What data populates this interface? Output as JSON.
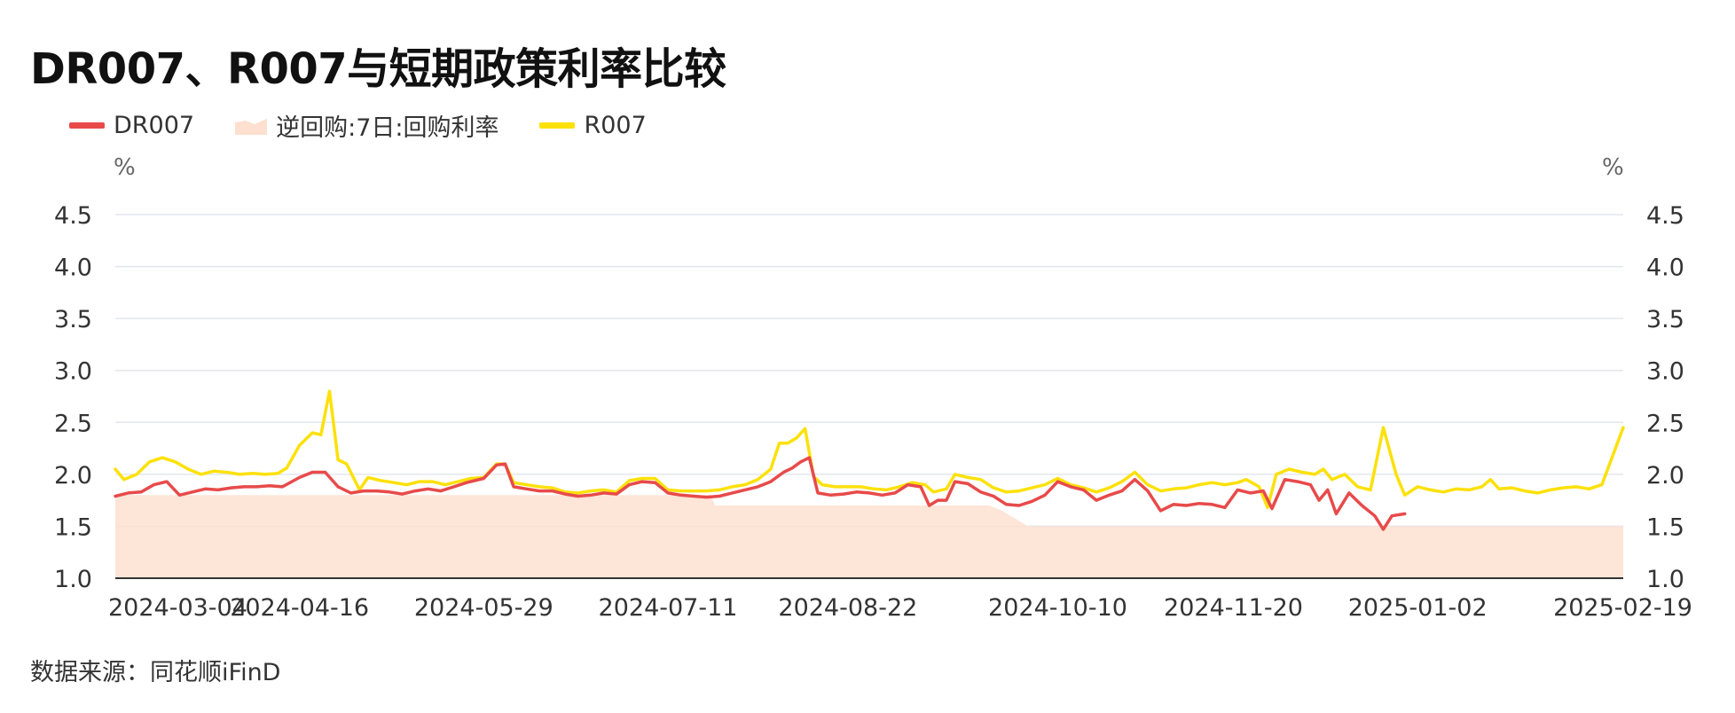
{
  "title": "DR007、R007与短期政策利率比较",
  "legend": [
    {
      "label": "DR007",
      "color": "#e84a4a",
      "kind": "line"
    },
    {
      "label": "逆回购:7日:回购利率",
      "color": "#fde0d0",
      "kind": "area"
    },
    {
      "label": "R007",
      "color": "#fce10b",
      "kind": "line"
    }
  ],
  "unit_left": "%",
  "unit_right": "%",
  "source": "数据来源：同花顺iFinD",
  "chart_data": {
    "type": "line",
    "title": "DR007、R007与短期政策利率比较",
    "ylabel": "%",
    "ylim": [
      1.0,
      4.5
    ],
    "yticks": [
      "1.0",
      "1.5",
      "2.0",
      "2.5",
      "3.0",
      "3.5",
      "4.0",
      "4.5"
    ],
    "xticks": [
      "2024-03-04",
      "2024-04-16",
      "2024-05-29",
      "2024-07-11",
      "2024-08-22",
      "2024-10-10",
      "2024-11-20",
      "2025-01-02",
      "2025-02-19"
    ],
    "x_range": [
      "2024-03-04",
      "2025-02-19"
    ],
    "grid": true,
    "legend_position": "top-left",
    "series": [
      {
        "name": "逆回购:7日:回购利率",
        "kind": "area",
        "color": "#fde0d0",
        "points": [
          [
            "2024-03-04",
            1.8
          ],
          [
            "2024-07-21",
            1.8
          ],
          [
            "2024-07-22",
            1.7
          ],
          [
            "2024-09-24",
            1.7
          ],
          [
            "2024-09-27",
            1.65
          ],
          [
            "2024-10-03",
            1.5
          ],
          [
            "2025-02-19",
            1.5
          ]
        ]
      },
      {
        "name": "R007",
        "kind": "line",
        "color": "#fce10b",
        "points": [
          [
            "2024-03-04",
            2.05
          ],
          [
            "2024-03-06",
            1.95
          ],
          [
            "2024-03-09",
            2.0
          ],
          [
            "2024-03-12",
            2.12
          ],
          [
            "2024-03-15",
            2.16
          ],
          [
            "2024-03-18",
            2.12
          ],
          [
            "2024-03-21",
            2.05
          ],
          [
            "2024-03-24",
            2.0
          ],
          [
            "2024-03-27",
            2.03
          ],
          [
            "2024-03-30",
            2.02
          ],
          [
            "2024-04-02",
            2.0
          ],
          [
            "2024-04-05",
            2.01
          ],
          [
            "2024-04-08",
            2.0
          ],
          [
            "2024-04-11",
            2.01
          ],
          [
            "2024-04-13",
            2.06
          ],
          [
            "2024-04-16",
            2.28
          ],
          [
            "2024-04-19",
            2.4
          ],
          [
            "2024-04-21",
            2.38
          ],
          [
            "2024-04-23",
            2.8
          ],
          [
            "2024-04-25",
            2.14
          ],
          [
            "2024-04-27",
            2.1
          ],
          [
            "2024-04-30",
            1.85
          ],
          [
            "2024-05-02",
            1.97
          ],
          [
            "2024-05-05",
            1.94
          ],
          [
            "2024-05-08",
            1.92
          ],
          [
            "2024-05-11",
            1.9
          ],
          [
            "2024-05-14",
            1.93
          ],
          [
            "2024-05-17",
            1.93
          ],
          [
            "2024-05-20",
            1.9
          ],
          [
            "2024-05-23",
            1.93
          ],
          [
            "2024-05-26",
            1.96
          ],
          [
            "2024-05-29",
            1.97
          ],
          [
            "2024-06-01",
            2.1
          ],
          [
            "2024-06-03",
            2.1
          ],
          [
            "2024-06-05",
            1.92
          ],
          [
            "2024-06-08",
            1.9
          ],
          [
            "2024-06-11",
            1.88
          ],
          [
            "2024-06-14",
            1.87
          ],
          [
            "2024-06-17",
            1.83
          ],
          [
            "2024-06-20",
            1.82
          ],
          [
            "2024-06-23",
            1.84
          ],
          [
            "2024-06-26",
            1.85
          ],
          [
            "2024-06-29",
            1.83
          ],
          [
            "2024-07-02",
            1.94
          ],
          [
            "2024-07-05",
            1.96
          ],
          [
            "2024-07-08",
            1.96
          ],
          [
            "2024-07-11",
            1.85
          ],
          [
            "2024-07-14",
            1.84
          ],
          [
            "2024-07-17",
            1.84
          ],
          [
            "2024-07-20",
            1.84
          ],
          [
            "2024-07-23",
            1.85
          ],
          [
            "2024-07-26",
            1.88
          ],
          [
            "2024-07-29",
            1.9
          ],
          [
            "2024-08-01",
            1.95
          ],
          [
            "2024-08-04",
            2.05
          ],
          [
            "2024-08-06",
            2.3
          ],
          [
            "2024-08-08",
            2.3
          ],
          [
            "2024-08-10",
            2.35
          ],
          [
            "2024-08-12",
            2.44
          ],
          [
            "2024-08-14",
            1.98
          ],
          [
            "2024-08-16",
            1.9
          ],
          [
            "2024-08-19",
            1.88
          ],
          [
            "2024-08-22",
            1.88
          ],
          [
            "2024-08-25",
            1.88
          ],
          [
            "2024-08-28",
            1.86
          ],
          [
            "2024-08-31",
            1.85
          ],
          [
            "2024-09-03",
            1.88
          ],
          [
            "2024-09-06",
            1.92
          ],
          [
            "2024-09-09",
            1.9
          ],
          [
            "2024-09-11",
            1.83
          ],
          [
            "2024-09-14",
            1.86
          ],
          [
            "2024-09-16",
            2.0
          ],
          [
            "2024-09-19",
            1.97
          ],
          [
            "2024-09-22",
            1.95
          ],
          [
            "2024-09-25",
            1.87
          ],
          [
            "2024-09-28",
            1.83
          ],
          [
            "2024-10-01",
            1.84
          ],
          [
            "2024-10-04",
            1.87
          ],
          [
            "2024-10-07",
            1.9
          ],
          [
            "2024-10-10",
            1.96
          ],
          [
            "2024-10-13",
            1.9
          ],
          [
            "2024-10-16",
            1.87
          ],
          [
            "2024-10-19",
            1.83
          ],
          [
            "2024-10-22",
            1.87
          ],
          [
            "2024-10-25",
            1.93
          ],
          [
            "2024-10-28",
            2.02
          ],
          [
            "2024-10-31",
            1.9
          ],
          [
            "2024-11-03",
            1.84
          ],
          [
            "2024-11-06",
            1.86
          ],
          [
            "2024-11-09",
            1.87
          ],
          [
            "2024-11-12",
            1.9
          ],
          [
            "2024-11-15",
            1.92
          ],
          [
            "2024-11-18",
            1.9
          ],
          [
            "2024-11-21",
            1.92
          ],
          [
            "2024-11-23",
            1.95
          ],
          [
            "2024-11-26",
            1.88
          ],
          [
            "2024-11-28",
            1.68
          ],
          [
            "2024-11-30",
            2.0
          ],
          [
            "2024-12-03",
            2.05
          ],
          [
            "2024-12-06",
            2.02
          ],
          [
            "2024-12-09",
            2.0
          ],
          [
            "2024-12-11",
            2.05
          ],
          [
            "2024-12-13",
            1.95
          ],
          [
            "2024-12-16",
            2.0
          ],
          [
            "2024-12-19",
            1.88
          ],
          [
            "2024-12-22",
            1.85
          ],
          [
            "2024-12-25",
            2.45
          ],
          [
            "2024-12-28",
            2.0
          ],
          [
            "2024-12-30",
            1.8
          ],
          [
            "2025-01-02",
            1.88
          ],
          [
            "2025-01-05",
            1.85
          ],
          [
            "2025-01-08",
            1.83
          ],
          [
            "2025-01-11",
            1.86
          ],
          [
            "2025-01-14",
            1.85
          ],
          [
            "2025-01-17",
            1.88
          ],
          [
            "2025-01-19",
            1.95
          ],
          [
            "2025-01-21",
            1.86
          ],
          [
            "2025-01-24",
            1.87
          ],
          [
            "2025-01-27",
            1.84
          ],
          [
            "2025-01-30",
            1.82
          ],
          [
            "2025-02-02",
            1.85
          ],
          [
            "2025-02-05",
            1.87
          ],
          [
            "2025-02-08",
            1.88
          ],
          [
            "2025-02-11",
            1.86
          ],
          [
            "2025-02-14",
            1.9
          ],
          [
            "2025-02-19",
            2.45
          ]
        ]
      },
      {
        "name": "DR007",
        "kind": "line",
        "color": "#e84a4a",
        "points": [
          [
            "2024-03-04",
            1.79
          ],
          [
            "2024-03-07",
            1.82
          ],
          [
            "2024-03-10",
            1.83
          ],
          [
            "2024-03-13",
            1.9
          ],
          [
            "2024-03-16",
            1.93
          ],
          [
            "2024-03-19",
            1.8
          ],
          [
            "2024-03-22",
            1.83
          ],
          [
            "2024-03-25",
            1.86
          ],
          [
            "2024-03-28",
            1.85
          ],
          [
            "2024-03-31",
            1.87
          ],
          [
            "2024-04-03",
            1.88
          ],
          [
            "2024-04-06",
            1.88
          ],
          [
            "2024-04-09",
            1.89
          ],
          [
            "2024-04-12",
            1.88
          ],
          [
            "2024-04-16",
            1.97
          ],
          [
            "2024-04-19",
            2.02
          ],
          [
            "2024-04-22",
            2.02
          ],
          [
            "2024-04-25",
            1.88
          ],
          [
            "2024-04-28",
            1.82
          ],
          [
            "2024-05-01",
            1.84
          ],
          [
            "2024-05-04",
            1.84
          ],
          [
            "2024-05-07",
            1.83
          ],
          [
            "2024-05-10",
            1.81
          ],
          [
            "2024-05-13",
            1.84
          ],
          [
            "2024-05-16",
            1.86
          ],
          [
            "2024-05-19",
            1.84
          ],
          [
            "2024-05-22",
            1.88
          ],
          [
            "2024-05-25",
            1.92
          ],
          [
            "2024-05-29",
            1.96
          ],
          [
            "2024-06-01",
            2.09
          ],
          [
            "2024-06-03",
            2.1
          ],
          [
            "2024-06-05",
            1.88
          ],
          [
            "2024-06-08",
            1.86
          ],
          [
            "2024-06-11",
            1.84
          ],
          [
            "2024-06-14",
            1.84
          ],
          [
            "2024-06-17",
            1.81
          ],
          [
            "2024-06-20",
            1.79
          ],
          [
            "2024-06-23",
            1.8
          ],
          [
            "2024-06-26",
            1.82
          ],
          [
            "2024-06-29",
            1.81
          ],
          [
            "2024-07-02",
            1.9
          ],
          [
            "2024-07-05",
            1.93
          ],
          [
            "2024-07-08",
            1.92
          ],
          [
            "2024-07-11",
            1.82
          ],
          [
            "2024-07-14",
            1.8
          ],
          [
            "2024-07-17",
            1.79
          ],
          [
            "2024-07-20",
            1.78
          ],
          [
            "2024-07-23",
            1.79
          ],
          [
            "2024-07-26",
            1.82
          ],
          [
            "2024-07-29",
            1.85
          ],
          [
            "2024-08-01",
            1.88
          ],
          [
            "2024-08-04",
            1.93
          ],
          [
            "2024-08-07",
            2.02
          ],
          [
            "2024-08-09",
            2.06
          ],
          [
            "2024-08-11",
            2.12
          ],
          [
            "2024-08-13",
            2.16
          ],
          [
            "2024-08-15",
            1.82
          ],
          [
            "2024-08-18",
            1.8
          ],
          [
            "2024-08-21",
            1.81
          ],
          [
            "2024-08-24",
            1.83
          ],
          [
            "2024-08-27",
            1.82
          ],
          [
            "2024-08-30",
            1.8
          ],
          [
            "2024-09-02",
            1.82
          ],
          [
            "2024-09-05",
            1.9
          ],
          [
            "2024-09-08",
            1.88
          ],
          [
            "2024-09-10",
            1.7
          ],
          [
            "2024-09-12",
            1.75
          ],
          [
            "2024-09-14",
            1.75
          ],
          [
            "2024-09-16",
            1.93
          ],
          [
            "2024-09-19",
            1.91
          ],
          [
            "2024-09-22",
            1.83
          ],
          [
            "2024-09-25",
            1.79
          ],
          [
            "2024-09-28",
            1.71
          ],
          [
            "2024-10-01",
            1.7
          ],
          [
            "2024-10-04",
            1.74
          ],
          [
            "2024-10-07",
            1.8
          ],
          [
            "2024-10-10",
            1.93
          ],
          [
            "2024-10-13",
            1.88
          ],
          [
            "2024-10-16",
            1.85
          ],
          [
            "2024-10-19",
            1.75
          ],
          [
            "2024-10-22",
            1.8
          ],
          [
            "2024-10-25",
            1.84
          ],
          [
            "2024-10-28",
            1.95
          ],
          [
            "2024-10-31",
            1.84
          ],
          [
            "2024-11-03",
            1.65
          ],
          [
            "2024-11-06",
            1.71
          ],
          [
            "2024-11-09",
            1.7
          ],
          [
            "2024-11-12",
            1.72
          ],
          [
            "2024-11-15",
            1.71
          ],
          [
            "2024-11-18",
            1.68
          ],
          [
            "2024-11-21",
            1.85
          ],
          [
            "2024-11-24",
            1.82
          ],
          [
            "2024-11-27",
            1.84
          ],
          [
            "2024-11-29",
            1.67
          ],
          [
            "2024-12-02",
            1.95
          ],
          [
            "2024-12-05",
            1.93
          ],
          [
            "2024-12-08",
            1.9
          ],
          [
            "2024-12-10",
            1.75
          ],
          [
            "2024-12-12",
            1.85
          ],
          [
            "2024-12-14",
            1.62
          ],
          [
            "2024-12-17",
            1.82
          ],
          [
            "2024-12-20",
            1.7
          ],
          [
            "2024-12-23",
            1.6
          ],
          [
            "2024-12-25",
            1.47
          ],
          [
            "2024-12-27",
            1.6
          ],
          [
            "2024-12-30",
            1.62
          ]
        ]
      }
    ]
  }
}
